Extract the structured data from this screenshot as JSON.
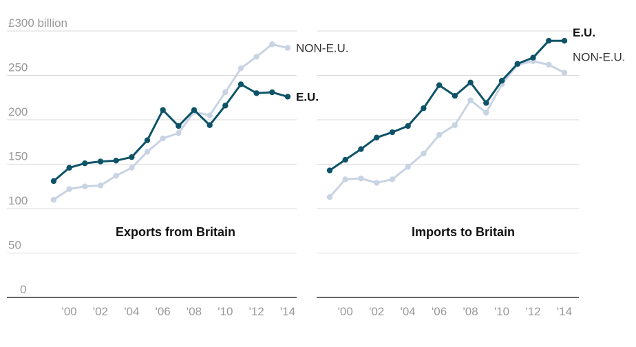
{
  "chart_data": [
    {
      "type": "line",
      "title": "Exports from Britain",
      "ylabel": "£300 billion",
      "ylim": [
        0,
        300
      ],
      "yticks": [
        "0",
        "50",
        "100",
        "150",
        "200",
        "250",
        "£300 billion"
      ],
      "x": [
        1999,
        2000,
        2001,
        2002,
        2003,
        2004,
        2005,
        2006,
        2007,
        2008,
        2009,
        2010,
        2011,
        2012,
        2013,
        2014
      ],
      "xtick_labels": [
        "'00",
        "'02",
        "'04",
        "'06",
        "'08",
        "'10",
        "'12",
        "'14"
      ],
      "series": [
        {
          "name": "NON-E.U.",
          "color": "#c8d3e3",
          "values": [
            110,
            122,
            125,
            126,
            137,
            146,
            164,
            179,
            185,
            209,
            205,
            231,
            258,
            271,
            285,
            281
          ]
        },
        {
          "name": "E.U.",
          "color": "#0d5368",
          "values": [
            131,
            146,
            151,
            153,
            154,
            158,
            177,
            211,
            193,
            211,
            194,
            216,
            240,
            230,
            231,
            226
          ]
        }
      ]
    },
    {
      "type": "line",
      "title": "Imports to Britain",
      "ylim": [
        0,
        300
      ],
      "x": [
        1999,
        2000,
        2001,
        2002,
        2003,
        2004,
        2005,
        2006,
        2007,
        2008,
        2009,
        2010,
        2011,
        2012,
        2013,
        2014
      ],
      "xtick_labels": [
        "'00",
        "'02",
        "'04",
        "'06",
        "'08",
        "'10",
        "'12",
        "'14"
      ],
      "series": [
        {
          "name": "NON-E.U.",
          "color": "#c8d3e3",
          "values": [
            113,
            133,
            134,
            129,
            133,
            147,
            162,
            183,
            194,
            222,
            208,
            240,
            262,
            266,
            262,
            253
          ]
        },
        {
          "name": "E.U.",
          "color": "#0d5368",
          "values": [
            143,
            155,
            167,
            180,
            186,
            193,
            213,
            239,
            227,
            242,
            219,
            244,
            263,
            270,
            289,
            289
          ]
        }
      ]
    }
  ]
}
